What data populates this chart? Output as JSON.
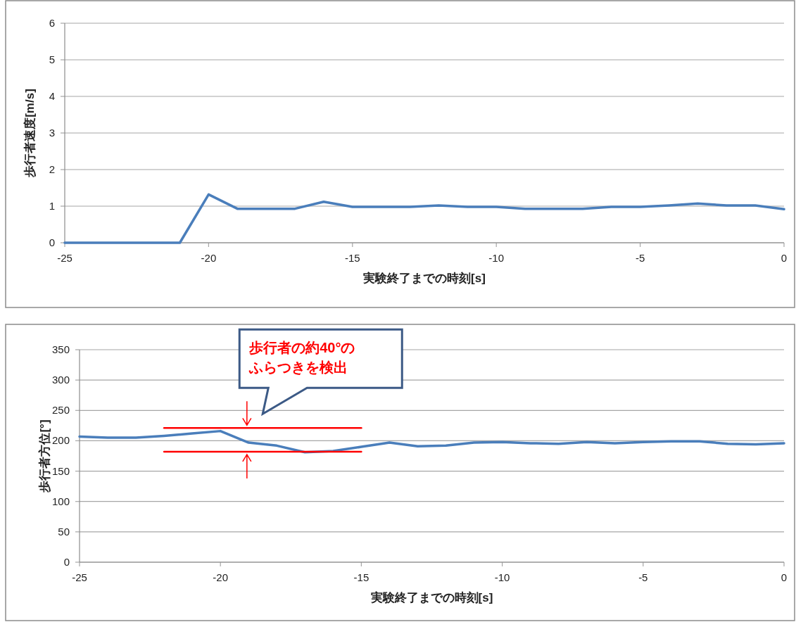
{
  "chart_data": [
    {
      "type": "line",
      "xlabel": "実験終了までの時刻[s]",
      "ylabel": "歩行者速度[m/s]",
      "xlim": [
        -25,
        0
      ],
      "xticks": [
        -25,
        -20,
        -15,
        -10,
        -5,
        0
      ],
      "ylim": [
        0,
        6
      ],
      "yticks": [
        0,
        1,
        2,
        3,
        4,
        5,
        6
      ],
      "grid": "y",
      "x": [
        -25,
        -24,
        -23,
        -22,
        -21,
        -20,
        -19,
        -18,
        -17,
        -16,
        -15,
        -14,
        -13,
        -12,
        -11,
        -10,
        -9,
        -8,
        -7,
        -6,
        -5,
        -4,
        -3,
        -2,
        -1,
        0
      ],
      "series": [
        {
          "color": "#4a7ebb",
          "values": [
            0,
            0,
            0,
            0,
            0,
            1.32,
            0.93,
            0.93,
            0.93,
            1.12,
            0.98,
            0.98,
            0.98,
            1.02,
            0.98,
            0.98,
            0.93,
            0.93,
            0.93,
            0.98,
            0.98,
            1.02,
            1.07,
            1.02,
            1.02,
            0.92
          ]
        }
      ]
    },
    {
      "type": "line",
      "xlabel": "実験終了までの時刻[s]",
      "ylabel": "歩行者方位[°]",
      "xlim": [
        -25,
        0
      ],
      "xticks": [
        -25,
        -20,
        -15,
        -10,
        -5,
        0
      ],
      "ylim": [
        0,
        350
      ],
      "yticks": [
        0,
        50,
        100,
        150,
        200,
        250,
        300,
        350
      ],
      "grid": "y",
      "x": [
        -25,
        -24,
        -23,
        -22,
        -21,
        -20,
        -19,
        -18,
        -17,
        -16,
        -15,
        -14,
        -13,
        -12,
        -11,
        -10,
        -9,
        -8,
        -7,
        -6,
        -5,
        -4,
        -3,
        -2,
        -1,
        0
      ],
      "series": [
        {
          "color": "#4a7ebb",
          "values": [
            207,
            205,
            205,
            208,
            212,
            216,
            197,
            192,
            181,
            183,
            190,
            197,
            191,
            192,
            197,
            198,
            196,
            195,
            198,
            196,
            198,
            199,
            199,
            195,
            194,
            196
          ]
        },
        {
          "color": "#ff0000",
          "values": [
            null,
            null,
            null,
            221,
            221,
            221,
            221,
            221,
            221,
            221,
            221,
            null,
            null,
            null,
            null,
            null,
            null,
            null,
            null,
            null,
            null,
            null,
            null,
            null,
            null,
            null
          ]
        },
        {
          "color": "#ff0000",
          "values": [
            null,
            null,
            null,
            182,
            182,
            182,
            182,
            182,
            182,
            182,
            182,
            null,
            null,
            null,
            null,
            null,
            null,
            null,
            null,
            null,
            null,
            null,
            null,
            null,
            null,
            null
          ]
        }
      ],
      "annotations": [
        "歩行者の約40°のふらつきを検出"
      ]
    }
  ]
}
